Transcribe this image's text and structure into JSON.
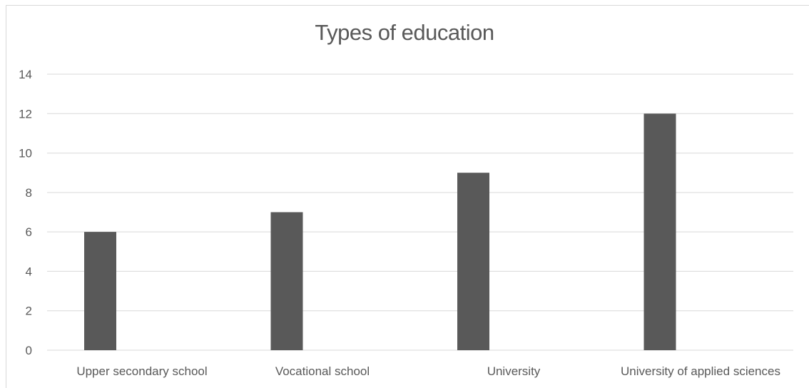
{
  "chart_data": {
    "type": "bar",
    "title": "Types of education",
    "xlabel": "",
    "ylabel": "",
    "categories": [
      "Upper secondary school",
      "Vocational school",
      "University",
      "University of applied sciences"
    ],
    "values": [
      6,
      7,
      9,
      12
    ],
    "ylim": [
      0,
      14
    ],
    "yticks": [
      0,
      2,
      4,
      6,
      8,
      10,
      12,
      14
    ],
    "grid": true,
    "legend": "none",
    "bar_color": "#595959",
    "grid_color": "#d9d9d9"
  }
}
